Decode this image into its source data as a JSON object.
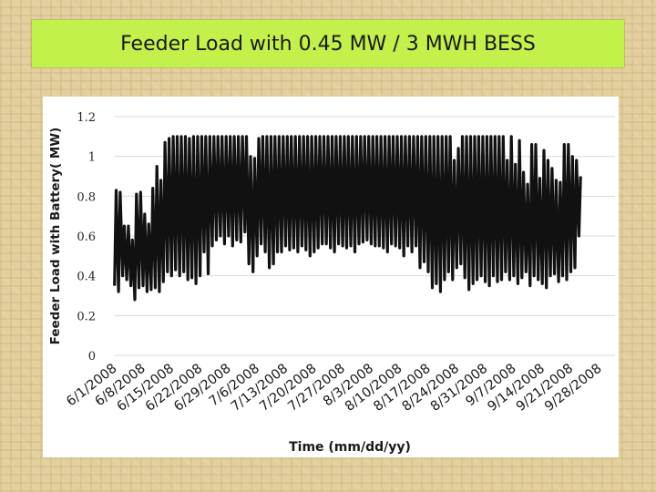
{
  "slide": {
    "title": "Feeder Load with 0.45 MW / 3 MWH BESS"
  },
  "colors": {
    "title_bg": "#c3f04a",
    "background": "#e2cf9d",
    "line": "#111111",
    "grid": "#d9d9d9"
  },
  "chart_data": {
    "type": "line",
    "title": "",
    "xlabel": "Time (mm/dd/yy)",
    "ylabel": "Feeder Load with Battery( MW)",
    "ylim": [
      0,
      1.2
    ],
    "yticks": [
      "0",
      "0.2",
      "0.4",
      "0.6",
      "0.8",
      "1",
      "1.2"
    ],
    "xlim": [
      "6/1/2008",
      "10/2/2008"
    ],
    "xticks": [
      "6/1/2008",
      "6/8/2008",
      "6/15/2008",
      "6/22/2008",
      "6/29/2008",
      "7/6/2008",
      "7/13/2008",
      "7/20/2008",
      "7/27/2008",
      "8/3/2008",
      "8/10/2008",
      "8/17/2008",
      "8/24/2008",
      "8/31/2008",
      "9/7/2008",
      "9/14/2008",
      "9/21/2008",
      "9/28/2008"
    ],
    "grid": true,
    "legend": "none",
    "series": [
      {
        "name": "",
        "daily_peak": [
          0.83,
          0.82,
          0.65,
          0.65,
          0.58,
          0.81,
          0.82,
          0.71,
          0.66,
          0.84,
          0.95,
          0.88,
          1.07,
          1.09,
          1.1,
          1.1,
          1.1,
          1.1,
          1.09,
          1.1,
          1.1,
          1.1,
          1.1,
          1.1,
          1.1,
          1.1,
          1.1,
          1.1,
          1.1,
          1.1,
          1.1,
          1.1,
          1.1,
          1.0,
          0.99,
          1.09,
          1.1,
          1.1,
          1.1,
          1.1,
          1.1,
          1.1,
          1.1,
          1.1,
          1.1,
          1.1,
          1.1,
          1.1,
          1.1,
          1.1,
          1.1,
          1.1,
          1.1,
          1.1,
          1.1,
          1.1,
          1.1,
          1.1,
          1.1,
          1.1,
          1.1,
          1.1,
          1.1,
          1.1,
          1.1,
          1.1,
          1.1,
          1.1,
          1.1,
          1.1,
          1.1,
          1.1,
          1.1,
          1.1,
          1.1,
          1.1,
          1.1,
          1.1,
          1.1,
          1.1,
          1.1,
          1.1,
          1.1,
          0.98,
          1.04,
          1.1,
          1.1,
          1.1,
          1.1,
          1.1,
          1.1,
          1.1,
          1.1,
          1.1,
          1.1,
          1.1,
          0.98,
          1.1,
          0.96,
          1.08,
          0.92,
          0.86,
          1.06,
          1.06,
          0.89,
          1.03,
          0.98,
          0.94,
          0.88,
          0.87,
          1.06,
          1.06,
          1.0,
          0.98,
          0.9
        ],
        "daily_min": [
          0.35,
          0.32,
          0.4,
          0.38,
          0.35,
          0.28,
          0.34,
          0.35,
          0.32,
          0.33,
          0.34,
          0.32,
          0.37,
          0.42,
          0.4,
          0.43,
          0.4,
          0.42,
          0.38,
          0.39,
          0.36,
          0.4,
          0.52,
          0.41,
          0.55,
          0.58,
          0.6,
          0.56,
          0.6,
          0.55,
          0.58,
          0.57,
          0.62,
          0.46,
          0.42,
          0.5,
          0.56,
          0.52,
          0.44,
          0.46,
          0.52,
          0.52,
          0.55,
          0.53,
          0.54,
          0.52,
          0.55,
          0.53,
          0.5,
          0.52,
          0.54,
          0.56,
          0.56,
          0.54,
          0.52,
          0.56,
          0.55,
          0.54,
          0.55,
          0.52,
          0.56,
          0.57,
          0.58,
          0.56,
          0.55,
          0.55,
          0.54,
          0.52,
          0.56,
          0.55,
          0.54,
          0.5,
          0.55,
          0.52,
          0.55,
          0.44,
          0.47,
          0.42,
          0.34,
          0.36,
          0.32,
          0.38,
          0.42,
          0.38,
          0.44,
          0.46,
          0.39,
          0.33,
          0.36,
          0.38,
          0.4,
          0.37,
          0.35,
          0.4,
          0.37,
          0.38,
          0.42,
          0.38,
          0.4,
          0.36,
          0.39,
          0.42,
          0.35,
          0.4,
          0.38,
          0.36,
          0.34,
          0.4,
          0.41,
          0.37,
          0.4,
          0.38,
          0.42,
          0.44,
          0.6
        ]
      }
    ]
  }
}
